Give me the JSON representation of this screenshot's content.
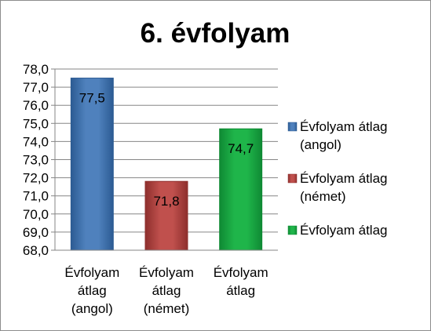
{
  "chart_data": {
    "type": "bar",
    "title": "6. évfolyam",
    "categories": [
      [
        "Évfolyam",
        "átlag",
        "(angol)"
      ],
      [
        "Évfolyam",
        "átlag",
        "(német)"
      ],
      [
        "Évfolyam",
        "átlag"
      ]
    ],
    "values": [
      77.5,
      71.8,
      74.7
    ],
    "data_labels": [
      "77,5",
      "71,8",
      "74,7"
    ],
    "ylim": [
      68.0,
      78.0
    ],
    "ytick_step": 1.0,
    "ytick_labels": [
      "68,0",
      "69,0",
      "70,0",
      "71,0",
      "72,0",
      "73,0",
      "74,0",
      "75,0",
      "76,0",
      "77,0",
      "78,0"
    ],
    "grid": true,
    "legend_position": "right",
    "legend": [
      [
        "Évfolyam átlag",
        "(angol)"
      ],
      [
        "Évfolyam átlag",
        "(német)"
      ],
      [
        "Évfolyam átlag"
      ]
    ],
    "colors": [
      "#4f81bd",
      "#c0504d",
      "#1fb54a"
    ],
    "colors_dark": [
      "#2c5b93",
      "#8e2f2d",
      "#0f8a34"
    ]
  }
}
